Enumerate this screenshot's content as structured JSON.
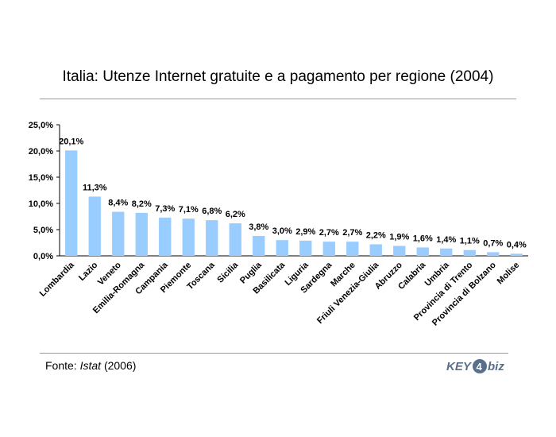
{
  "title": "Italia: Utenze Internet gratuite e a pagamento per regione (2004)",
  "source": {
    "prefix": "Fonte: ",
    "name": "Istat",
    "suffix": " (2006)"
  },
  "logo": {
    "text_left": "KEY",
    "text_right": "biz",
    "number": "4"
  },
  "colors": {
    "bar": "#99ccff",
    "axis": "#000000",
    "rule": "#999999",
    "logo": "#5a6f8c"
  },
  "chart_data": {
    "type": "bar",
    "title": "Italia: Utenze Internet gratuite e a pagamento per regione (2004)",
    "xlabel": "",
    "ylabel": "",
    "ylim": [
      0,
      25
    ],
    "yticks": [
      0,
      5,
      10,
      15,
      20,
      25
    ],
    "ytick_labels": [
      "0,0%",
      "5,0%",
      "10,0%",
      "15,0%",
      "20,0%",
      "25,0%"
    ],
    "grid": false,
    "legend": "none",
    "categories": [
      "Lombardia",
      "Lazio",
      "Veneto",
      "Emilia-Romagna",
      "Campania",
      "Piemonte",
      "Toscana",
      "Sicilia",
      "Puglia",
      "Basilicata",
      "Liguria",
      "Sardegna",
      "Marche",
      "Friuli Venezia-Giulia",
      "Abruzzo",
      "Calabria",
      "Umbria",
      "Provincia di Trento",
      "Provincia di Bolzano",
      "Molise"
    ],
    "values": [
      20.1,
      11.3,
      8.4,
      8.2,
      7.3,
      7.1,
      6.8,
      6.2,
      3.8,
      3.0,
      2.9,
      2.7,
      2.7,
      2.2,
      1.9,
      1.6,
      1.4,
      1.1,
      0.7,
      0.4
    ],
    "value_labels": [
      "20,1%",
      "11,3%",
      "8,4%",
      "8,2%",
      "7,3%",
      "7,1%",
      "6,8%",
      "6,2%",
      "3,8%",
      "3,0%",
      "2,9%",
      "2,7%",
      "2,7%",
      "2,2%",
      "1,9%",
      "1,6%",
      "1,4%",
      "1,1%",
      "0,7%",
      "0,4%"
    ]
  }
}
